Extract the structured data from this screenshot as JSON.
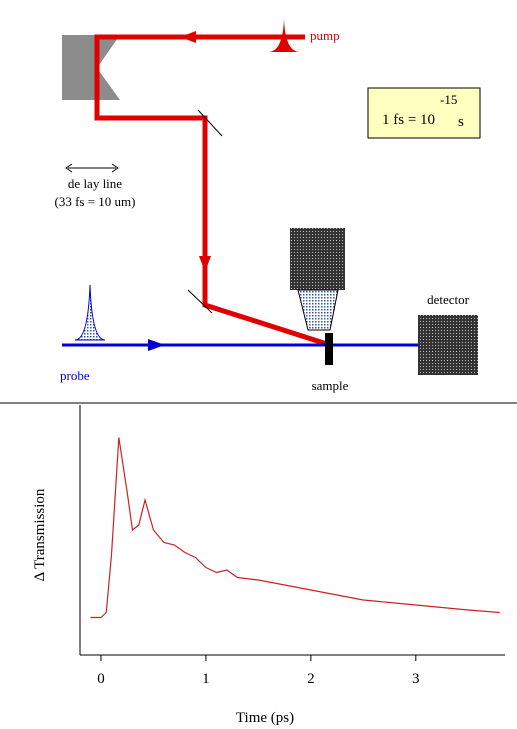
{
  "diagram": {
    "pump": "pump",
    "equation": "1 fs = 10",
    "exponent": "-15",
    "unit": "s",
    "delay_line": "de lay line",
    "delay_note": "(33 fs = 10 um)",
    "detector": "detector",
    "probe": "probe",
    "sample": "sample"
  },
  "chart_data": {
    "type": "line",
    "ylabel": "Δ Transmission",
    "xlabel": "Time (ps)",
    "x": [
      -0.1,
      0,
      0.05,
      0.1,
      0.17,
      0.25,
      0.3,
      0.36,
      0.42,
      0.5,
      0.6,
      0.7,
      0.8,
      0.9,
      1.0,
      1.1,
      1.2,
      1.3,
      1.5,
      1.75,
      2.0,
      2.25,
      2.5,
      2.75,
      3.0,
      3.25,
      3.5,
      3.8
    ],
    "values": [
      0.15,
      0.15,
      0.17,
      0.4,
      0.87,
      0.65,
      0.5,
      0.52,
      0.62,
      0.5,
      0.45,
      0.44,
      0.41,
      0.39,
      0.35,
      0.33,
      0.34,
      0.31,
      0.3,
      0.28,
      0.26,
      0.24,
      0.22,
      0.21,
      0.2,
      0.19,
      0.18,
      0.17
    ],
    "color": "#cc2222",
    "xlim": [
      -0.2,
      3.85
    ],
    "ylim": [
      0,
      1
    ],
    "xticks": [
      0,
      1,
      2,
      3
    ]
  }
}
